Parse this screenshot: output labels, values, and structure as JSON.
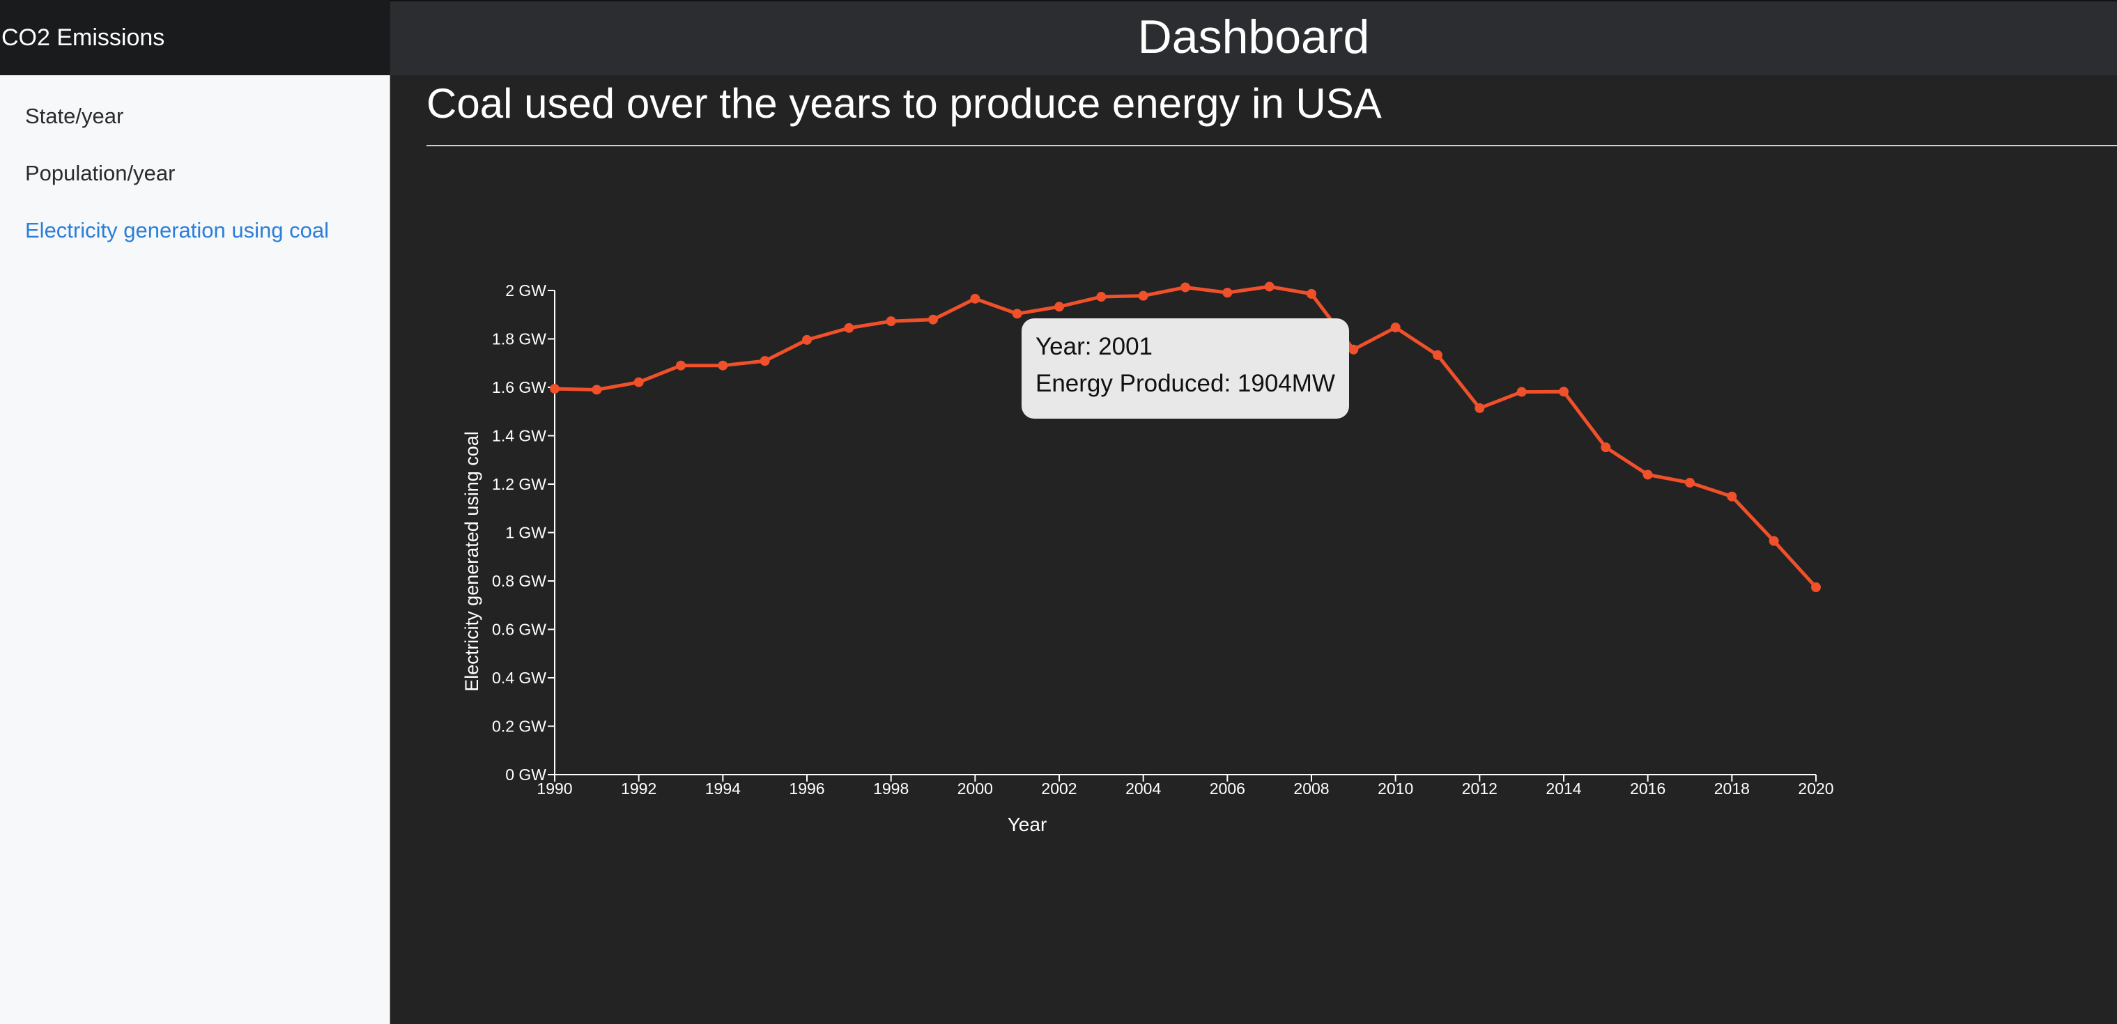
{
  "app": {
    "brand": "CO2 Emissions"
  },
  "header": {
    "title": "Dashboard"
  },
  "sidebar": {
    "items": [
      {
        "label": "State/year",
        "active": false
      },
      {
        "label": "Population/year",
        "active": false
      },
      {
        "label": "Electricity generation using coal",
        "active": true
      }
    ]
  },
  "main": {
    "heading": "Coal used over the years to produce energy in USA"
  },
  "colors": {
    "line": "#f0502a",
    "active_link": "#2b7fd8"
  },
  "tooltip": {
    "year_text": "Year: 2001",
    "energy_text": "Energy Produced: 1904MW"
  },
  "chart_data": {
    "type": "line",
    "xlabel": "Year",
    "ylabel": "Electricity generated using coal",
    "xlim": [
      1990,
      2020
    ],
    "ylim": [
      0,
      2
    ],
    "x_ticks": [
      "1990",
      "1992",
      "1994",
      "1996",
      "1998",
      "2000",
      "2002",
      "2004",
      "2006",
      "2008",
      "2010",
      "2012",
      "2014",
      "2016",
      "2018",
      "2020"
    ],
    "y_ticks": [
      "0 GW",
      "0.2 GW",
      "0.4 GW",
      "0.6 GW",
      "0.8 GW",
      "1 GW",
      "1.2 GW",
      "1.4 GW",
      "1.6 GW",
      "1.8 GW",
      "2 GW"
    ],
    "grid": false,
    "x": [
      1990,
      1991,
      1992,
      1993,
      1994,
      1995,
      1996,
      1997,
      1998,
      1999,
      2000,
      2001,
      2002,
      2003,
      2004,
      2005,
      2006,
      2007,
      2008,
      2009,
      2010,
      2011,
      2012,
      2013,
      2014,
      2015,
      2016,
      2017,
      2018,
      2019,
      2020
    ],
    "y": [
      1.594,
      1.59,
      1.621,
      1.69,
      1.69,
      1.709,
      1.796,
      1.845,
      1.873,
      1.88,
      1.966,
      1.904,
      1.933,
      1.974,
      1.978,
      2.013,
      1.991,
      2.016,
      1.986,
      1.756,
      1.847,
      1.733,
      1.514,
      1.581,
      1.582,
      1.352,
      1.239,
      1.206,
      1.149,
      0.965,
      0.774
    ]
  }
}
